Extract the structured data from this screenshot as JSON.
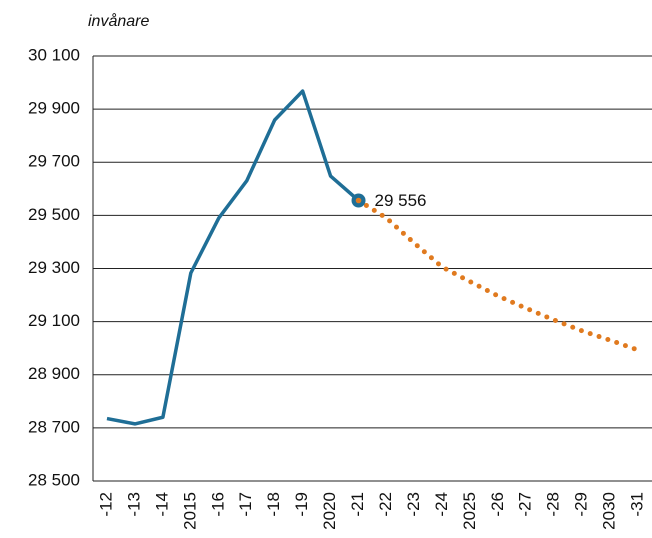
{
  "chart_data": {
    "type": "line",
    "y_label": "invånare",
    "categories": [
      "-12",
      "-13",
      "-14",
      "2015",
      "-16",
      "-17",
      "-18",
      "-19",
      "2020",
      "-21",
      "-22",
      "-23",
      "-24",
      "2025",
      "-26",
      "-27",
      "-28",
      "-29",
      "2030",
      "-31"
    ],
    "series": [
      {
        "color": "#1f6e96",
        "style": "solid",
        "values": [
          28735,
          28715,
          28740,
          29283,
          29490,
          29630,
          29859,
          29968,
          29648,
          29556,
          null,
          null,
          null,
          null,
          null,
          null,
          null,
          null,
          null,
          null
        ],
        "value_labels": [
          null,
          null,
          null,
          null,
          null,
          null,
          null,
          null,
          null,
          "29 556",
          null,
          null,
          null,
          null,
          null,
          null,
          null,
          null,
          null,
          null
        ]
      },
      {
        "color": "#e07a1f",
        "style": "dotted",
        "values": [
          null,
          null,
          null,
          null,
          null,
          null,
          null,
          null,
          null,
          29556,
          29490,
          29395,
          29305,
          29250,
          29196,
          29150,
          29106,
          29065,
          29030,
          28993
        ]
      }
    ],
    "ylim": [
      28500,
      30100
    ],
    "yticks": [
      {
        "value": 28500,
        "label": "28 500"
      },
      {
        "value": 28700,
        "label": "28 700"
      },
      {
        "value": 28900,
        "label": "28 900"
      },
      {
        "value": 29100,
        "label": "29 100"
      },
      {
        "value": 29300,
        "label": "29 300"
      },
      {
        "value": 29500,
        "label": "29 500"
      },
      {
        "value": 29700,
        "label": "29 700"
      },
      {
        "value": 29900,
        "label": "29 900"
      },
      {
        "value": 30100,
        "label": "30 100"
      }
    ],
    "grid": true
  }
}
